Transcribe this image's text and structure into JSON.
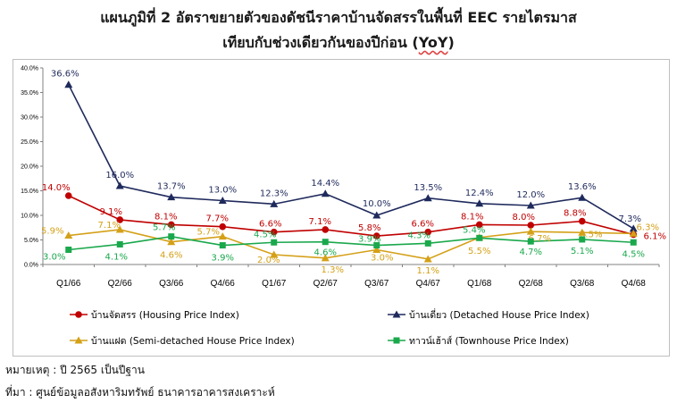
{
  "title_line1": "แผนภูมิที่ 2 อัตราขยายตัวของดัชนีราคาบ้านจัดสรรในพื้นที่ EEC รายไตรมาส",
  "title_line2_prefix": "เทียบกับช่วงเดียวกันของปีก่อน (",
  "title_line2_yoy": "YoY",
  "title_line2_suffix": ")",
  "note": "หมายเหตุ : ปี 2565 เป็นปีฐาน",
  "source": "ที่มา : ศูนย์ข้อมูลอสังหาริมทรัพย์ ธนาคารอาคารสงเคราะห์",
  "chart_data": {
    "type": "line",
    "categories": [
      "Q1/66",
      "Q2/66",
      "Q3/66",
      "Q4/66",
      "Q1/67",
      "Q2/67",
      "Q3/67",
      "Q4/67",
      "Q1/68",
      "Q2/68",
      "Q3/68",
      "Q4/68"
    ],
    "ylim": [
      0,
      40
    ],
    "yticks": [
      "0.0%",
      "5.0%",
      "10.0%",
      "15.0%",
      "20.0%",
      "25.0%",
      "30.0%",
      "35.0%",
      "40.0%"
    ],
    "grid": false,
    "legend_position": "bottom",
    "series": [
      {
        "name": "บ้านจัดสรร (Housing Price Index)",
        "color": "#c00000",
        "marker": "circle",
        "values": [
          14.0,
          9.1,
          8.1,
          7.7,
          6.6,
          7.1,
          5.8,
          6.6,
          8.1,
          8.0,
          8.8,
          6.1
        ],
        "labels": [
          "14.0%",
          "9.1%",
          "8.1%",
          "7.7%",
          "6.6%",
          "7.1%",
          "5.8%",
          "6.6%",
          "8.1%",
          "8.0%",
          "8.8%",
          "6.1%"
        ]
      },
      {
        "name": "บ้านเดี่ยว (Detached House Price Index)",
        "color": "#1f2a5c",
        "marker": "triangle",
        "values": [
          36.6,
          16.0,
          13.7,
          13.0,
          12.3,
          14.4,
          10.0,
          13.5,
          12.4,
          12.0,
          13.6,
          7.3
        ],
        "labels": [
          "36.6%",
          "16.0%",
          "13.7%",
          "13.0%",
          "12.3%",
          "14.4%",
          "10.0%",
          "13.5%",
          "12.4%",
          "12.0%",
          "13.6%",
          "7.3%"
        ]
      },
      {
        "name": "บ้านแฝด (Semi-detached House Price Index)",
        "color": "#d4a017",
        "marker": "triangle",
        "values": [
          5.9,
          7.1,
          4.6,
          5.7,
          2.0,
          1.3,
          3.0,
          1.1,
          5.5,
          6.7,
          6.5,
          6.3
        ],
        "labels": [
          "5.9%",
          "7.1%",
          "4.6%",
          "5.7%",
          "2.0%",
          "1.3%",
          "3.0%",
          "1.1%",
          "5.5%",
          "6.7%",
          "6.5%",
          "6.3%"
        ]
      },
      {
        "name": "ทาวน์เฮ้าส์ (Townhouse Price Index)",
        "color": "#1aa84c",
        "marker": "square",
        "values": [
          3.0,
          4.1,
          5.7,
          3.9,
          4.5,
          4.6,
          3.9,
          4.3,
          5.4,
          4.7,
          5.1,
          4.5
        ],
        "labels": [
          "3.0%",
          "4.1%",
          "5.7%",
          "3.9%",
          "4.5%",
          "4.6%",
          "3.9%",
          "4.3%",
          "5.4%",
          "4.7%",
          "5.1%",
          "4.5%"
        ]
      }
    ]
  }
}
